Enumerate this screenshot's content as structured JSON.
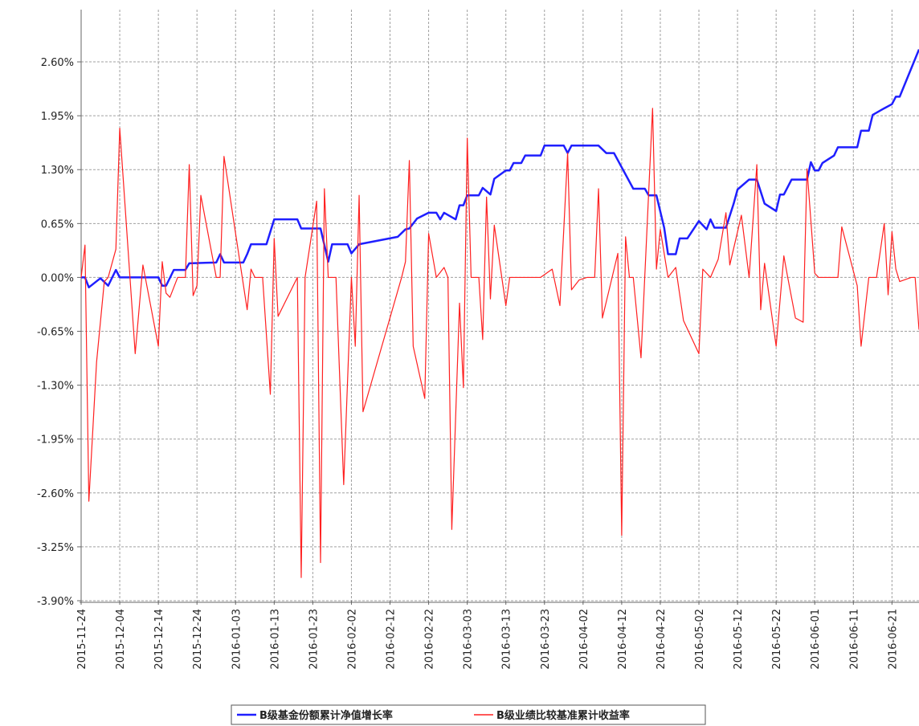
{
  "chart_data": {
    "type": "line",
    "xlim": [
      "2015-11-24",
      "2016-06-28"
    ],
    "ylim": [
      -3.9,
      3.23
    ],
    "grid": true,
    "legend": "bottom",
    "xticks": [
      "2015-11-24",
      "2015-12-04",
      "2015-12-14",
      "2015-12-24",
      "2016-01-03",
      "2016-01-13",
      "2016-01-23",
      "2016-02-02",
      "2016-02-12",
      "2016-02-22",
      "2016-03-03",
      "2016-03-13",
      "2016-03-23",
      "2016-04-02",
      "2016-04-12",
      "2016-04-22",
      "2016-05-02",
      "2016-05-12",
      "2016-05-22",
      "2016-06-01",
      "2016-06-11",
      "2016-06-21"
    ],
    "yticks": [
      {
        "value": -3.9,
        "label": "-3.90%"
      },
      {
        "value": -3.25,
        "label": "-3.25%"
      },
      {
        "value": -2.6,
        "label": "-2.60%"
      },
      {
        "value": -1.95,
        "label": "-1.95%"
      },
      {
        "value": -1.3,
        "label": "-1.30%"
      },
      {
        "value": -0.65,
        "label": "-0.65%"
      },
      {
        "value": 0,
        "label": "0.00%"
      },
      {
        "value": 0.65,
        "label": "0.65%"
      },
      {
        "value": 1.3,
        "label": "1.30%"
      },
      {
        "value": 1.95,
        "label": "1.95%"
      },
      {
        "value": 2.6,
        "label": "2.60%"
      }
    ],
    "series": [
      {
        "name": "B级基金份额累计净值增长率",
        "color": "#1f1fff",
        "width": 2.5,
        "x": [
          "2015-11-24",
          "2015-11-25",
          "2015-11-26",
          "2015-11-29",
          "2015-12-01",
          "2015-12-03",
          "2015-12-04",
          "2015-12-14",
          "2015-12-15",
          "2015-12-16",
          "2015-12-18",
          "2015-12-21",
          "2015-12-22",
          "2015-12-29",
          "2015-12-30",
          "2015-12-31",
          "2016-01-05",
          "2016-01-06",
          "2016-01-07",
          "2016-01-11",
          "2016-01-13",
          "2016-01-19",
          "2016-01-20",
          "2016-01-25",
          "2016-01-27",
          "2016-01-28",
          "2016-02-01",
          "2016-02-02",
          "2016-02-04",
          "2016-02-14",
          "2016-02-16",
          "2016-02-17",
          "2016-02-19",
          "2016-02-22",
          "2016-02-24",
          "2016-02-25",
          "2016-02-26",
          "2016-02-29",
          "2016-03-01",
          "2016-03-02",
          "2016-03-03",
          "2016-03-06",
          "2016-03-07",
          "2016-03-09",
          "2016-03-10",
          "2016-03-13",
          "2016-03-14",
          "2016-03-15",
          "2016-03-17",
          "2016-03-18",
          "2016-03-22",
          "2016-03-23",
          "2016-03-28",
          "2016-03-29",
          "2016-03-30",
          "2016-04-06",
          "2016-04-08",
          "2016-04-10",
          "2016-04-15",
          "2016-04-18",
          "2016-04-19",
          "2016-04-21",
          "2016-04-23",
          "2016-04-24",
          "2016-04-26",
          "2016-04-27",
          "2016-04-29",
          "2016-05-01",
          "2016-05-02",
          "2016-05-04",
          "2016-05-05",
          "2016-05-06",
          "2016-05-09",
          "2016-05-11",
          "2016-05-12",
          "2016-05-15",
          "2016-05-17",
          "2016-05-19",
          "2016-05-22",
          "2016-05-23",
          "2016-05-24",
          "2016-05-26",
          "2016-05-30",
          "2016-05-31",
          "2016-06-01",
          "2016-06-02",
          "2016-06-03",
          "2016-06-06",
          "2016-06-07",
          "2016-06-12",
          "2016-06-13",
          "2016-06-15",
          "2016-06-16",
          "2016-06-19",
          "2016-06-21",
          "2016-06-22",
          "2016-06-23",
          "2016-06-28"
        ],
        "values": [
          0,
          0,
          -0.12,
          -0.01,
          -0.1,
          0.09,
          0,
          0,
          -0.1,
          -0.1,
          0.09,
          0.09,
          0.17,
          0.18,
          0.28,
          0.18,
          0.18,
          0.28,
          0.4,
          0.4,
          0.7,
          0.7,
          0.59,
          0.59,
          0.19,
          0.4,
          0.4,
          0.29,
          0.4,
          0.49,
          0.58,
          0.59,
          0.71,
          0.78,
          0.78,
          0.7,
          0.78,
          0.7,
          0.87,
          0.87,
          0.99,
          0.99,
          1.08,
          1.0,
          1.19,
          1.29,
          1.29,
          1.38,
          1.38,
          1.47,
          1.47,
          1.59,
          1.59,
          1.5,
          1.59,
          1.59,
          1.5,
          1.5,
          1.07,
          1.07,
          0.99,
          0.99,
          0.6,
          0.28,
          0.28,
          0.47,
          0.47,
          0.61,
          0.68,
          0.58,
          0.7,
          0.6,
          0.6,
          0.89,
          1.06,
          1.18,
          1.18,
          0.89,
          0.8,
          1.0,
          1.0,
          1.18,
          1.18,
          1.39,
          1.29,
          1.29,
          1.38,
          1.47,
          1.57,
          1.57,
          1.77,
          1.77,
          1.96,
          2.04,
          2.09,
          2.18,
          2.18,
          2.75
        ]
      },
      {
        "name": "B级业绩比较基准累计收益率",
        "color": "#ff2020",
        "width": 1.2,
        "x": [
          "2015-11-24",
          "2015-11-25",
          "2015-11-26",
          "2015-11-28",
          "2015-11-30",
          "2015-12-01",
          "2015-12-03",
          "2015-12-04",
          "2015-12-06",
          "2015-12-08",
          "2015-12-10",
          "2015-12-14",
          "2015-12-15",
          "2015-12-16",
          "2015-12-17",
          "2015-12-19",
          "2015-12-21",
          "2015-12-22",
          "2015-12-23",
          "2015-12-24",
          "2015-12-25",
          "2015-12-29",
          "2015-12-30",
          "2015-12-31",
          "2016-01-03",
          "2016-01-06",
          "2016-01-07",
          "2016-01-08",
          "2016-01-10",
          "2016-01-12",
          "2016-01-13",
          "2016-01-14",
          "2016-01-19",
          "2016-01-20",
          "2016-01-21",
          "2016-01-24",
          "2016-01-25",
          "2016-01-26",
          "2016-01-27",
          "2016-01-29",
          "2016-01-31",
          "2016-02-02",
          "2016-02-03",
          "2016-02-04",
          "2016-02-05",
          "2016-02-15",
          "2016-02-16",
          "2016-02-17",
          "2016-02-18",
          "2016-02-21",
          "2016-02-22",
          "2016-02-24",
          "2016-02-26",
          "2016-02-27",
          "2016-02-28",
          "2016-03-01",
          "2016-03-02",
          "2016-03-03",
          "2016-03-04",
          "2016-03-06",
          "2016-03-07",
          "2016-03-08",
          "2016-03-09",
          "2016-03-10",
          "2016-03-13",
          "2016-03-14",
          "2016-03-22",
          "2016-03-25",
          "2016-03-27",
          "2016-03-29",
          "2016-03-30",
          "2016-04-01",
          "2016-04-03",
          "2016-04-05",
          "2016-04-06",
          "2016-04-07",
          "2016-04-11",
          "2016-04-12",
          "2016-04-13",
          "2016-04-14",
          "2016-04-15",
          "2016-04-17",
          "2016-04-20",
          "2016-04-21",
          "2016-04-22",
          "2016-04-24",
          "2016-04-26",
          "2016-04-28",
          "2016-05-02",
          "2016-05-03",
          "2016-05-05",
          "2016-05-07",
          "2016-05-09",
          "2016-05-10",
          "2016-05-13",
          "2016-05-15",
          "2016-05-17",
          "2016-05-18",
          "2016-05-19",
          "2016-05-22",
          "2016-05-24",
          "2016-05-25",
          "2016-05-27",
          "2016-05-29",
          "2016-05-30",
          "2016-06-01",
          "2016-06-02",
          "2016-06-07",
          "2016-06-08",
          "2016-06-12",
          "2016-06-13",
          "2016-06-15",
          "2016-06-17",
          "2016-06-19",
          "2016-06-20",
          "2016-06-21",
          "2016-06-22",
          "2016-06-23",
          "2016-06-26",
          "2016-06-27",
          "2016-06-28"
        ],
        "values": [
          0,
          0.39,
          -2.7,
          -1.02,
          -0.05,
          0,
          0.34,
          1.8,
          0.44,
          -0.92,
          0.15,
          -0.83,
          0.19,
          -0.19,
          -0.24,
          0,
          0,
          1.36,
          -0.22,
          -0.1,
          0.99,
          0,
          0,
          1.46,
          0.53,
          -0.39,
          0.1,
          0,
          0,
          -1.41,
          0.47,
          -0.47,
          0,
          -3.62,
          0,
          0.92,
          -3.44,
          1.07,
          0,
          0,
          -2.5,
          0,
          -0.83,
          0.99,
          -1.62,
          0,
          0.19,
          1.41,
          -0.83,
          -1.46,
          0.53,
          0,
          0.12,
          0,
          -3.04,
          -0.31,
          -1.33,
          1.68,
          0,
          0,
          -0.75,
          0.97,
          -0.26,
          0.63,
          -0.34,
          0,
          0,
          0.1,
          -0.34,
          1.5,
          -0.15,
          -0.03,
          0,
          0,
          1.07,
          -0.49,
          0.29,
          -3.11,
          0.49,
          0,
          0,
          -0.97,
          2.04,
          0.1,
          0.58,
          0,
          0.12,
          -0.52,
          -0.92,
          0.1,
          0,
          0.22,
          0.78,
          0.15,
          0.75,
          0,
          1.36,
          -0.39,
          0.17,
          -0.83,
          0.26,
          0,
          -0.49,
          -0.54,
          1.31,
          0.05,
          0,
          0,
          0.61,
          -0.1,
          -0.83,
          0,
          0,
          0.65,
          -0.21,
          0.55,
          0.1,
          -0.05,
          0,
          0,
          -0.63
        ]
      }
    ]
  }
}
